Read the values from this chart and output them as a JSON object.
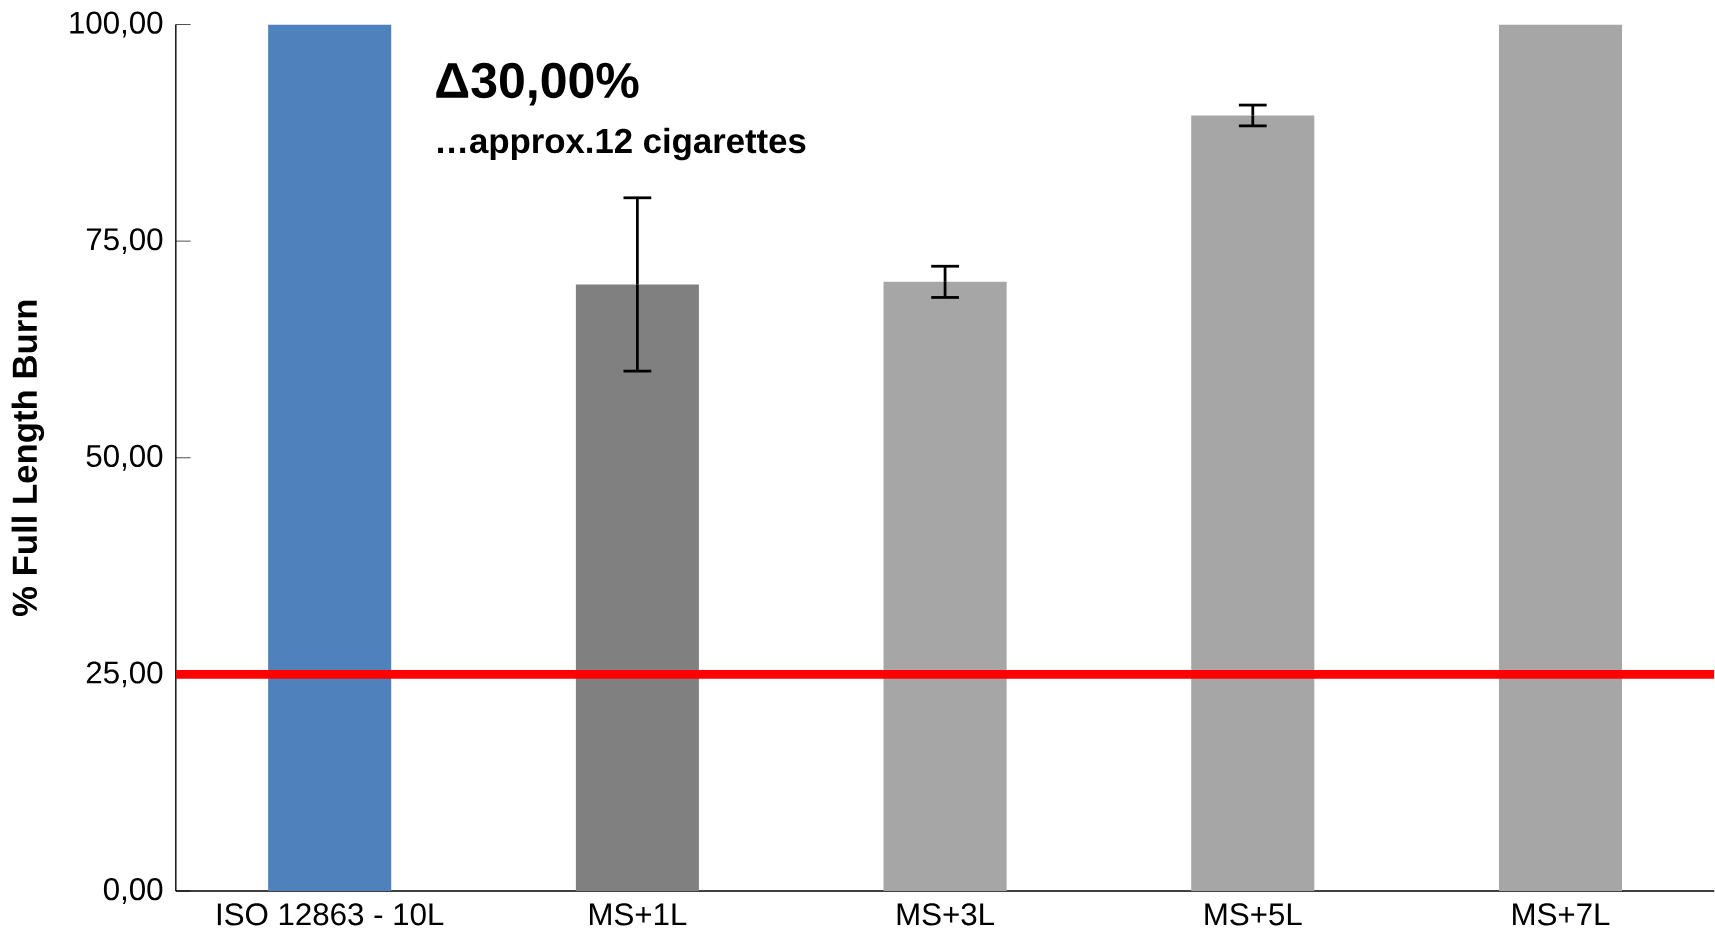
{
  "chart_data": {
    "type": "bar",
    "ylabel": "% Full Length Burn",
    "categories": [
      "ISO 12863 - 10L",
      "MS+1L",
      "MS+3L",
      "MS+5L",
      "MS+7L"
    ],
    "values": [
      100,
      70,
      70.3,
      89.5,
      100
    ],
    "errors": [
      null,
      10,
      1.8,
      1.2,
      null
    ],
    "colors": [
      "#4f81bd",
      "#808080",
      "#a6a6a6",
      "#a6a6a6",
      "#a6a6a6"
    ],
    "ylim": [
      0,
      100
    ],
    "yticks": [
      {
        "value": 0,
        "label": "0,00"
      },
      {
        "value": 25,
        "label": "25,00"
      },
      {
        "value": 50,
        "label": "50,00"
      },
      {
        "value": 75,
        "label": "75,00"
      },
      {
        "value": 100,
        "label": "100,00"
      }
    ],
    "ref_lines": [
      {
        "axis": "y",
        "value": 25,
        "color": "#ff0000"
      }
    ],
    "annotations": [
      "Δ30,00%",
      "…approx.12 cigarettes"
    ],
    "grid": false
  }
}
